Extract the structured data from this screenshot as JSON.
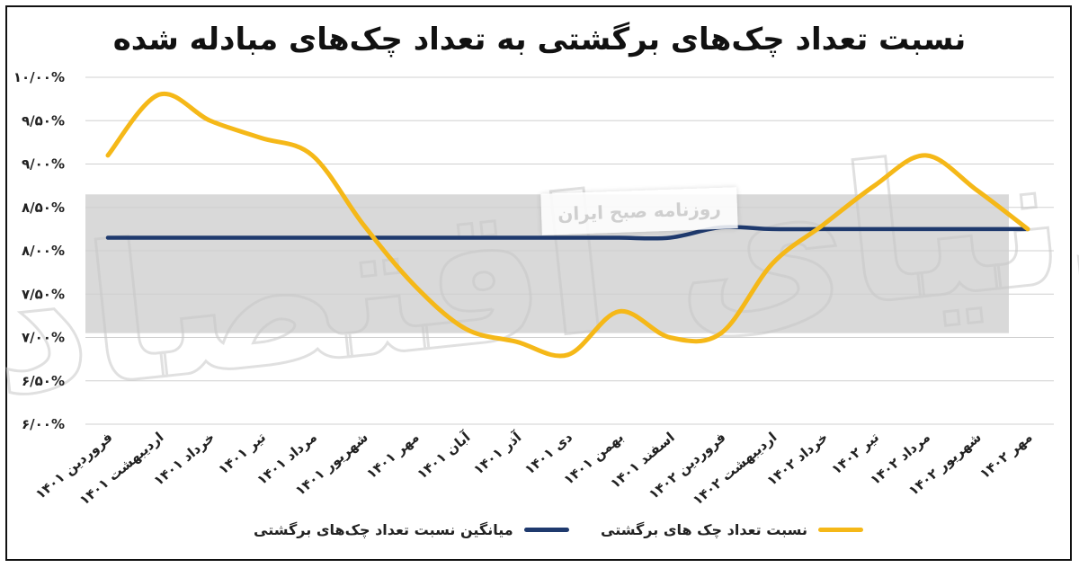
{
  "title": "نسبت تعداد چک‌های برگشتی به تعداد چک‌های مبادله شده",
  "watermark": {
    "publisher": "روزنامه صبح ایران"
  },
  "legend": {
    "avg_label": "میانگین نسبت تعداد چک‌های برگشتی",
    "ratio_label": "نسبت تعداد چک های برگشتی"
  },
  "colors": {
    "ratio": "#F5B818",
    "average": "#1F3A6E",
    "band": "#D9D9D9",
    "grid": "#D0D0D0"
  },
  "chart_data": {
    "type": "line",
    "title": "نسبت تعداد چک‌های برگشتی به تعداد چک‌های مبادله شده",
    "categories": [
      "فروردین ۱۴۰۱",
      "اردیبهشت ۱۴۰۱",
      "خرداد ۱۴۰۱",
      "تیر ۱۴۰۱",
      "مرداد ۱۴۰۱",
      "شهریور ۱۴۰۱",
      "مهر ۱۴۰۱",
      "آبان ۱۴۰۱",
      "آذر ۱۴۰۱",
      "دی ۱۴۰۱",
      "بهمن ۱۴۰۱",
      "اسفند ۱۴۰۱",
      "فروردین ۱۴۰۲",
      "اردیبهشت ۱۴۰۲",
      "خرداد ۱۴۰۲",
      "تیر ۱۴۰۲",
      "مرداد ۱۴۰۲",
      "شهریور ۱۴۰۲",
      "مهر ۱۴۰۲"
    ],
    "y_tick_labels": [
      "۶/۰۰%",
      "۶/۵۰%",
      "۷/۰۰%",
      "۷/۵۰%",
      "۸/۰۰%",
      "۸/۵۰%",
      "۹/۰۰%",
      "۹/۵۰%",
      "۱۰/۰۰%"
    ],
    "ylim": [
      6,
      10
    ],
    "y_unit": "%",
    "grid": true,
    "legend_position": "bottom",
    "series": [
      {
        "name": "نسبت تعداد چک های برگشتی",
        "values": [
          9.1,
          9.8,
          9.5,
          9.3,
          9.1,
          8.3,
          7.6,
          7.1,
          6.95,
          6.8,
          7.3,
          7.0,
          7.05,
          7.85,
          8.3,
          8.75,
          9.1,
          8.7,
          8.25
        ]
      },
      {
        "name": "میانگین نسبت تعداد چک‌های برگشتی",
        "values": [
          8.15,
          8.15,
          8.15,
          8.15,
          8.15,
          8.15,
          8.15,
          8.15,
          8.15,
          8.15,
          8.15,
          8.15,
          8.27,
          8.25,
          8.25,
          8.25,
          8.25,
          8.25,
          8.25
        ]
      }
    ]
  }
}
